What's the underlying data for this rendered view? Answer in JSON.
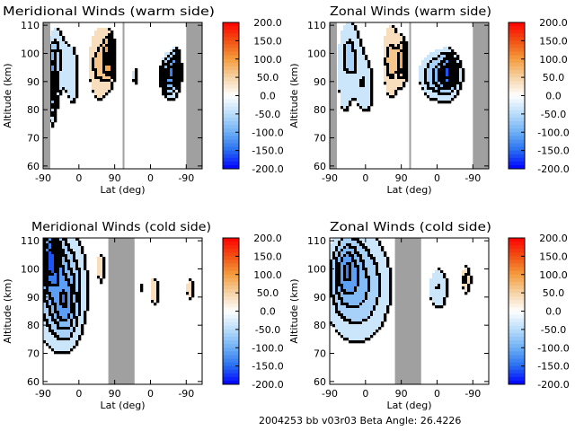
{
  "footer": "2004253 bb v03r03   Beta Angle: 26.4226",
  "colorbar": {
    "ticks": [
      "200.0",
      "150.0",
      "100.0",
      "50.0",
      "0.0",
      "-50.0",
      "-100.0",
      "-150.0",
      "-200.0"
    ],
    "range": [
      -200,
      200
    ],
    "colors": {
      "low": "#0000ff",
      "mid": "#ffffff",
      "high": "#ff0000"
    }
  },
  "colors": {
    "mask": "#a0a0a0",
    "axis": "#000000",
    "contour": "#000000"
  },
  "chart_data": [
    {
      "type": "heatmap",
      "title": "Meridional Winds (warm side)",
      "xlabel": "Lat (deg)",
      "ylabel": "Altitude (km)",
      "xticks": [
        "-90",
        "0",
        "90",
        "0",
        "-90"
      ],
      "yticks": [
        "60",
        "70",
        "80",
        "90",
        "100",
        "110"
      ],
      "ylim": [
        59,
        111
      ],
      "masks": [
        [
          0,
          9
        ],
        [
          100,
          101
        ],
        [
          180,
          200
        ]
      ],
      "blobs": [
        {
          "x": 18,
          "y": 98,
          "sx": 8,
          "sy": 9,
          "v": -55
        },
        {
          "x": 12,
          "y": 88,
          "sx": 4,
          "sy": 8,
          "v": -110
        },
        {
          "x": 38,
          "y": 92,
          "sx": 7,
          "sy": 9,
          "v": -45
        },
        {
          "x": 70,
          "y": 96,
          "sx": 10,
          "sy": 10,
          "v": 55
        },
        {
          "x": 84,
          "y": 98,
          "sx": 5,
          "sy": 6,
          "v": 85
        },
        {
          "x": 116,
          "y": 92,
          "sx": 4,
          "sy": 4,
          "v": -35
        },
        {
          "x": 160,
          "y": 92,
          "sx": 8,
          "sy": 5,
          "v": -120
        },
        {
          "x": 167,
          "y": 96,
          "sx": 4,
          "sy": 4,
          "v": -60
        }
      ]
    },
    {
      "type": "heatmap",
      "title": "Zonal Winds (warm side)",
      "xlabel": "Lat (deg)",
      "ylabel": "Altitude (km)",
      "xticks": [
        "-90",
        "0",
        "90",
        "0",
        "-90"
      ],
      "yticks": [
        "60",
        "70",
        "80",
        "90",
        "100",
        "110"
      ],
      "ylim": [
        59,
        111
      ],
      "masks": [
        [
          0,
          9
        ],
        [
          100,
          101
        ],
        [
          180,
          200
        ]
      ],
      "blobs": [
        {
          "x": 25,
          "y": 100,
          "sx": 11,
          "sy": 9,
          "v": -55
        },
        {
          "x": 45,
          "y": 88,
          "sx": 10,
          "sy": 8,
          "v": -45
        },
        {
          "x": 18,
          "y": 84,
          "sx": 6,
          "sy": 6,
          "v": -30
        },
        {
          "x": 78,
          "y": 97,
          "sx": 9,
          "sy": 10,
          "v": 60
        },
        {
          "x": 93,
          "y": 97,
          "sx": 4,
          "sy": 5,
          "v": 85
        },
        {
          "x": 140,
          "y": 92,
          "sx": 18,
          "sy": 6,
          "v": -85
        },
        {
          "x": 150,
          "y": 93,
          "sx": 6,
          "sy": 4,
          "v": -90
        }
      ]
    },
    {
      "type": "heatmap",
      "title": "Meridional Winds (cold side)",
      "xlabel": "Lat (deg)",
      "ylabel": "Altitude (km)",
      "xticks": [
        "-90",
        "0",
        "90",
        "0",
        "-90"
      ],
      "yticks": [
        "60",
        "70",
        "80",
        "90",
        "100",
        "110"
      ],
      "ylim": [
        59,
        111
      ],
      "masks": [
        [
          82,
          115
        ]
      ],
      "blobs": [
        {
          "x": 22,
          "y": 93,
          "sx": 22,
          "sy": 14,
          "v": -95
        },
        {
          "x": 10,
          "y": 104,
          "sx": 8,
          "sy": 7,
          "v": -110
        },
        {
          "x": 30,
          "y": 86,
          "sx": 9,
          "sy": 7,
          "v": -45
        },
        {
          "x": 72,
          "y": 100,
          "sx": 6,
          "sy": 6,
          "v": 45
        },
        {
          "x": 140,
          "y": 92,
          "sx": 7,
          "sy": 5,
          "v": 40
        },
        {
          "x": 125,
          "y": 93,
          "sx": 5,
          "sy": 4,
          "v": -30
        },
        {
          "x": 185,
          "y": 93,
          "sx": 5,
          "sy": 5,
          "v": 35
        }
      ]
    },
    {
      "type": "heatmap",
      "title": "Zonal Winds (cold side)",
      "xlabel": "Lat (deg)",
      "ylabel": "Altitude (km)",
      "xticks": [
        "-90",
        "0",
        "90",
        "0",
        "-90"
      ],
      "yticks": [
        "60",
        "70",
        "80",
        "90",
        "100",
        "110"
      ],
      "ylim": [
        59,
        111
      ],
      "masks": [
        [
          82,
          115
        ]
      ],
      "blobs": [
        {
          "x": 35,
          "y": 94,
          "sx": 28,
          "sy": 13,
          "v": -85
        },
        {
          "x": 22,
          "y": 100,
          "sx": 10,
          "sy": 7,
          "v": -60
        },
        {
          "x": 137,
          "y": 93,
          "sx": 10,
          "sy": 6,
          "v": -50
        },
        {
          "x": 172,
          "y": 96,
          "sx": 5,
          "sy": 4,
          "v": 55
        }
      ]
    }
  ]
}
